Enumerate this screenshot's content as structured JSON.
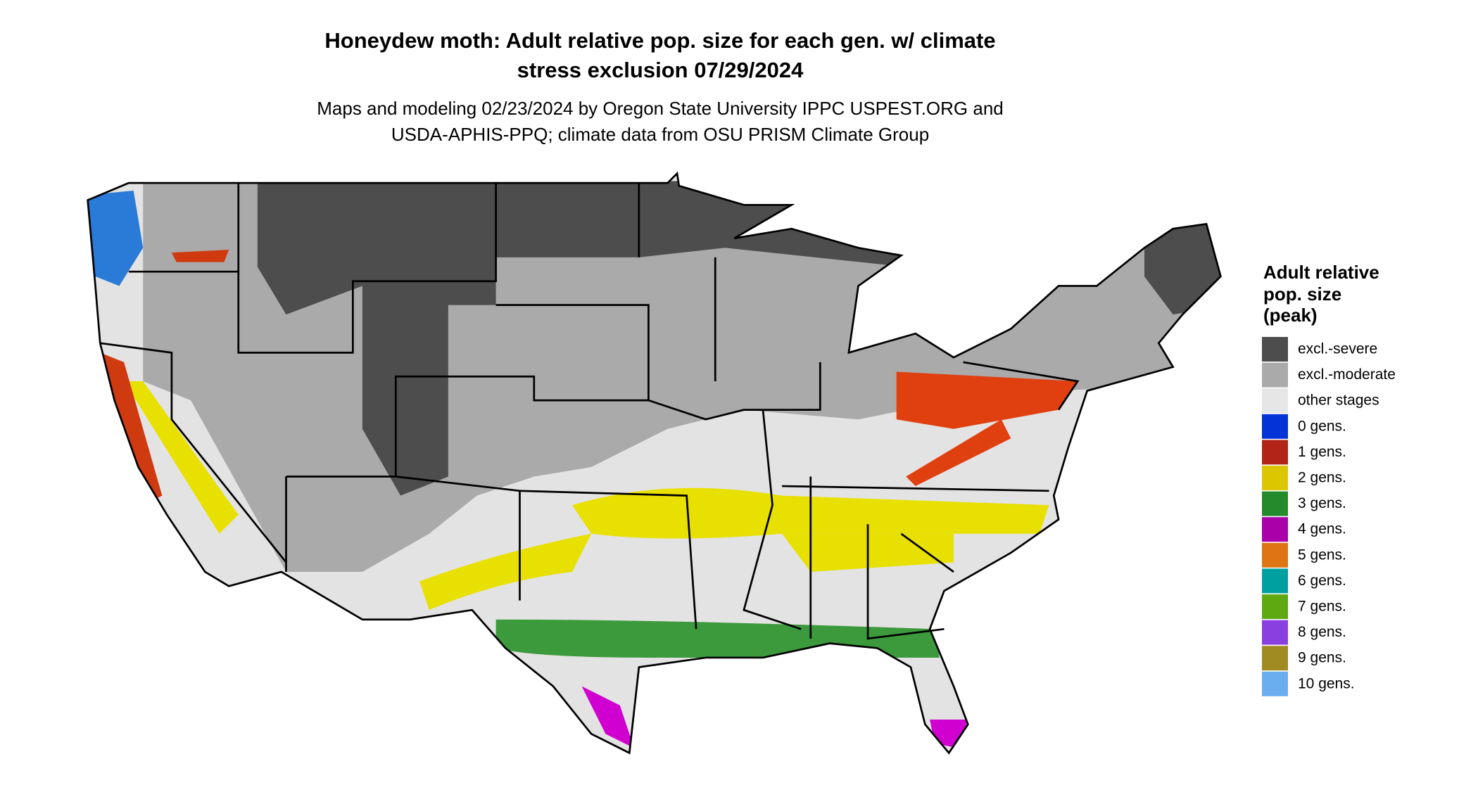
{
  "title": [
    "Honeydew moth: Adult relative pop. size for each gen. w/ climate",
    "stress exclusion 07/29/2024"
  ],
  "subtitle": [
    "Maps and modeling 02/23/2024 by Oregon State University IPPC USPEST.ORG and",
    "USDA-APHIS-PPQ; climate data from OSU PRISM Climate Group"
  ],
  "legend": {
    "title": [
      "Adult relative",
      "pop. size",
      "(peak)"
    ],
    "items": [
      {
        "label": "excl.-severe",
        "color": "#4d4d4d"
      },
      {
        "label": "excl.-moderate",
        "color": "#aaaaaa"
      },
      {
        "label": "other stages",
        "color": "#e6e6e6"
      },
      {
        "label": "0 gens.",
        "color": "#0433d8"
      },
      {
        "label": "1 gens.",
        "color": "#b22418"
      },
      {
        "label": "2 gens.",
        "color": "#dcc600"
      },
      {
        "label": "3 gens.",
        "color": "#248a2c"
      },
      {
        "label": "4 gens.",
        "color": "#aa00aa"
      },
      {
        "label": "5 gens.",
        "color": "#de7414"
      },
      {
        "label": "6 gens.",
        "color": "#00a0a0"
      },
      {
        "label": "7 gens.",
        "color": "#5ea812"
      },
      {
        "label": "8 gens.",
        "color": "#8a40e0"
      },
      {
        "label": "9 gens.",
        "color": "#a08a22"
      },
      {
        "label": "10 gens.",
        "color": "#6aaef0"
      }
    ]
  }
}
